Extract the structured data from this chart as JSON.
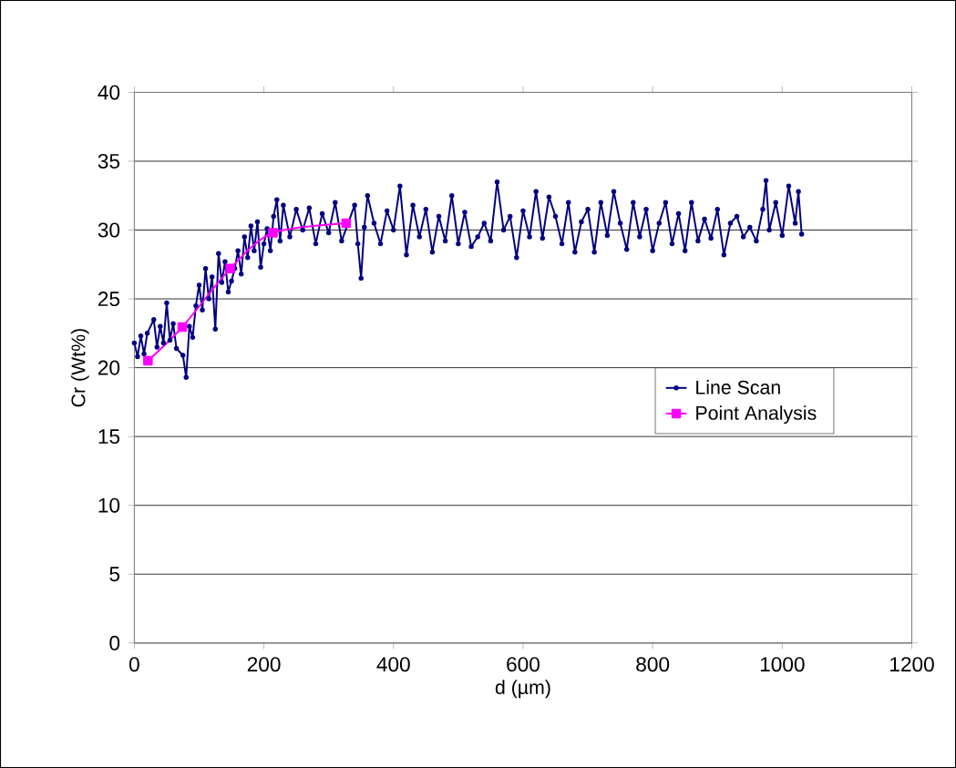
{
  "chart_data": {
    "type": "line",
    "xlabel": "d (µm)",
    "ylabel": "Cr (Wt%)",
    "xlim": [
      0,
      1200
    ],
    "xticks": [
      0,
      200,
      400,
      600,
      800,
      1000,
      1200
    ],
    "ylim": [
      0,
      40
    ],
    "yticks": [
      0,
      5,
      10,
      15,
      20,
      25,
      30,
      35,
      40
    ],
    "grid": "y",
    "legend": "right",
    "series": [
      {
        "name": "Line Scan",
        "color": "#000080",
        "marker": "circle",
        "x": [
          0,
          5,
          10,
          15,
          20,
          25,
          30,
          35,
          40,
          45,
          50,
          55,
          60,
          65,
          70,
          75,
          80,
          85,
          90,
          95,
          100,
          105,
          110,
          115,
          120,
          125,
          130,
          135,
          140,
          145,
          150,
          155,
          160,
          165,
          170,
          175,
          180,
          185,
          190,
          195,
          200,
          205,
          210,
          215,
          220,
          225,
          230,
          240,
          250,
          260,
          270,
          280,
          290,
          300,
          310,
          320,
          330,
          340,
          345,
          350,
          355,
          360,
          370,
          380,
          390,
          400,
          410,
          420,
          430,
          440,
          450,
          460,
          470,
          480,
          490,
          500,
          510,
          520,
          530,
          540,
          550,
          560,
          570,
          580,
          590,
          600,
          610,
          620,
          630,
          640,
          650,
          660,
          670,
          680,
          690,
          700,
          710,
          720,
          730,
          740,
          750,
          760,
          770,
          780,
          790,
          800,
          810,
          820,
          830,
          840,
          850,
          860,
          870,
          880,
          890,
          900,
          910,
          920,
          930,
          940,
          950,
          960,
          970,
          975,
          980,
          990,
          1000,
          1010,
          1020,
          1025,
          1030
        ],
        "values": [
          21.8,
          20.8,
          22.3,
          21.0,
          22.5,
          null,
          23.5,
          21.5,
          23.0,
          21.8,
          24.7,
          22.0,
          23.2,
          21.4,
          null,
          20.9,
          19.3,
          23.0,
          22.2,
          24.5,
          26.0,
          24.2,
          27.2,
          25.0,
          26.6,
          22.8,
          28.3,
          26.2,
          27.7,
          25.5,
          26.3,
          27.2,
          28.5,
          26.8,
          29.5,
          28.0,
          30.3,
          28.5,
          30.6,
          27.3,
          29.0,
          30.1,
          28.5,
          31.0,
          32.2,
          29.2,
          31.8,
          29.5,
          31.5,
          30.0,
          31.6,
          29.0,
          31.2,
          29.8,
          32.0,
          29.2,
          null,
          31.8,
          29.0,
          26.5,
          30.2,
          32.5,
          30.5,
          29.0,
          31.4,
          30.0,
          33.2,
          28.2,
          31.8,
          29.5,
          31.5,
          28.4,
          31.0,
          29.2,
          32.5,
          29.0,
          31.3,
          28.8,
          29.5,
          30.5,
          29.2,
          33.5,
          30.0,
          31.0,
          28.0,
          31.4,
          29.5,
          32.8,
          29.4,
          32.4,
          31.0,
          29.0,
          32.0,
          28.4,
          30.6,
          31.5,
          28.4,
          32.0,
          29.6,
          32.8,
          30.5,
          28.6,
          32.0,
          29.5,
          31.5,
          28.5,
          30.5,
          32.0,
          29.0,
          31.2,
          28.5,
          32.0,
          29.2,
          30.8,
          29.4,
          31.5,
          28.2,
          30.5,
          31.0,
          29.5,
          30.2,
          29.2,
          31.5,
          33.6,
          30.0,
          32.0,
          29.6,
          33.2,
          30.5,
          32.8,
          29.7
        ]
      },
      {
        "name": "Point Analysis",
        "color": "#ff00ff",
        "marker": "square",
        "x": [
          21,
          74,
          148,
          214,
          327
        ],
        "values": [
          20.5,
          22.95,
          27.2,
          29.8,
          30.5
        ]
      }
    ]
  }
}
